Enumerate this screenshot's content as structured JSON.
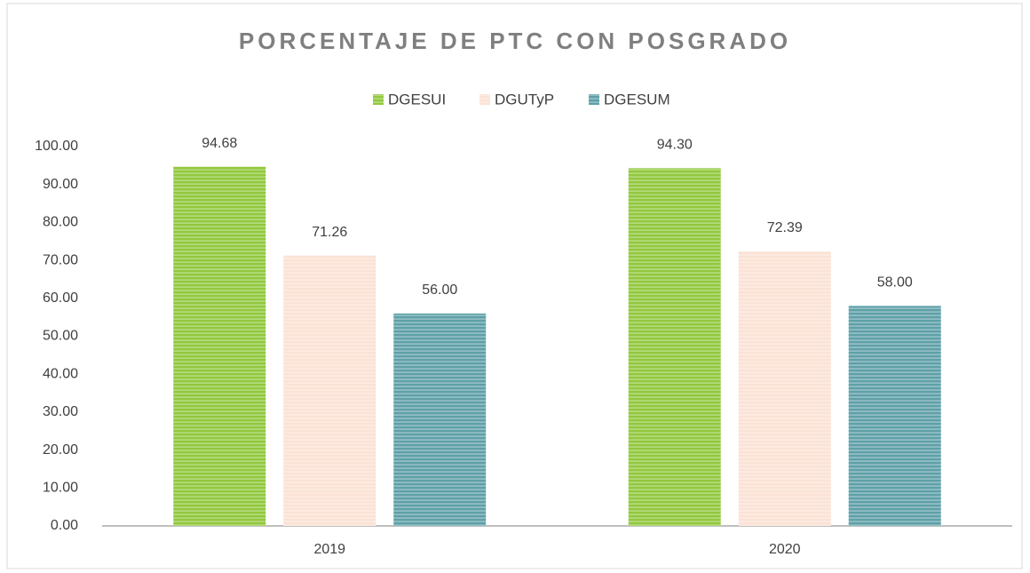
{
  "chart_data": {
    "type": "bar",
    "title": "PORCENTAJE DE PTC CON POSGRADO",
    "categories": [
      "2019",
      "2020"
    ],
    "series": [
      {
        "name": "DGESUI",
        "color": "#92c83e",
        "values": [
          94.68,
          94.3
        ],
        "value_labels": [
          "94.68",
          "94.30"
        ]
      },
      {
        "name": "DGUTyP",
        "color": "#fbe2d5",
        "values": [
          71.26,
          72.39
        ],
        "value_labels": [
          "71.26",
          "72.39"
        ]
      },
      {
        "name": "DGESUM",
        "color": "#5fa0a8",
        "values": [
          56,
          58
        ],
        "value_labels": [
          "56.00",
          "58.00"
        ]
      }
    ],
    "ylim": [
      0,
      100
    ],
    "yticks": [
      {
        "value": 0,
        "label": "0.00"
      },
      {
        "value": 10,
        "label": "10.00"
      },
      {
        "value": 20,
        "label": "20.00"
      },
      {
        "value": 30,
        "label": "30.00"
      },
      {
        "value": 40,
        "label": "40.00"
      },
      {
        "value": 50,
        "label": "50.00"
      },
      {
        "value": 60,
        "label": "60.00"
      },
      {
        "value": 70,
        "label": "70.00"
      },
      {
        "value": 80,
        "label": "80.00"
      },
      {
        "value": 90,
        "label": "90.00"
      },
      {
        "value": 100,
        "label": "100.00"
      }
    ],
    "grid": false,
    "legend": "top"
  }
}
